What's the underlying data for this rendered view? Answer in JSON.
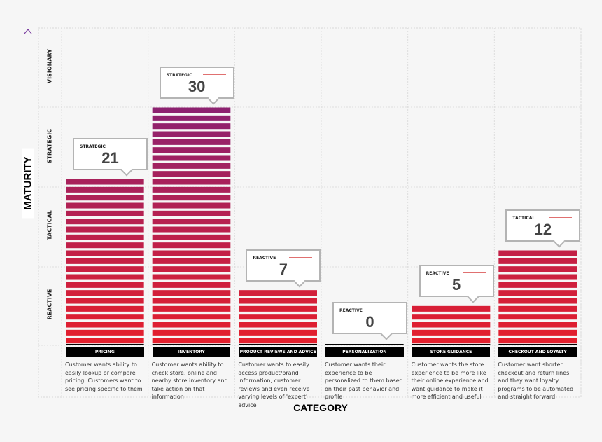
{
  "chart_data": {
    "type": "bar",
    "xlabel": "CATEGORY",
    "ylabel": "MATURITY",
    "y_levels": [
      "REACTIVE",
      "TACTICAL",
      "STRATEGIC",
      "VISIONARY"
    ],
    "ylim": [
      0,
      40
    ],
    "grid": true,
    "categories": [
      "PRICING",
      "INVENTORY",
      "PRODUCT REVIEWS AND ADVICE",
      "PERSONALIZATION",
      "STORE GUIDANCE",
      "CHECKOUT AND LOYALTY"
    ],
    "values": [
      21,
      30,
      7,
      0,
      5,
      12
    ],
    "value_levels": [
      "STRATEGIC",
      "STRATEGIC",
      "REACTIVE",
      "REACTIVE",
      "REACTIVE",
      "TACTICAL"
    ],
    "descriptions": [
      "Customer wants ability to easily lookup or compare pricing. Customers want to see pricing specific to them",
      "Customer wants ability to check store, online and nearby store inventory and take action on that information",
      "Customer wants to easily access product/brand information, customer reviews and even receive varying levels of 'expert' advice",
      "Customer wants their experience to be personalized to them based on their past behavior and profile",
      "Customer wants the store experience to be more like their online experience and want guidance to make it more efficient and useful",
      "Customer want shorter checkout and return lines and they want loyalty programs to be automated and straight forward"
    ],
    "colors": {
      "low": "#e41f2d",
      "high": "#8a2272",
      "axis_arrow_top": "#7b3fa0",
      "axis_arrow_bottom": "#e41f2d"
    }
  }
}
